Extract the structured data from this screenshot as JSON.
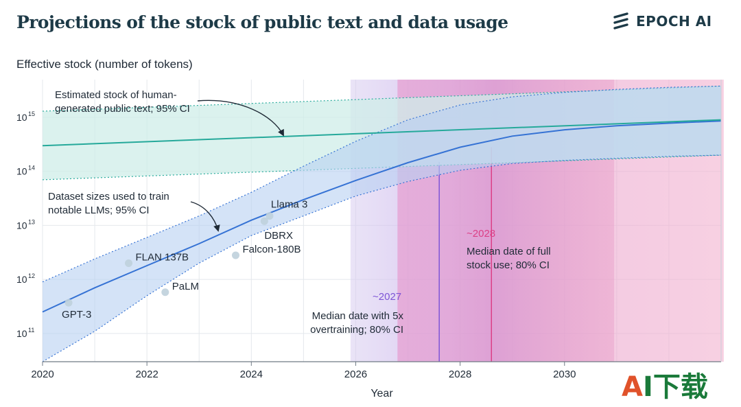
{
  "title": "Projections of the stock of public text and data usage",
  "logo": {
    "text": "EPOCH AI",
    "icon": "epoch-stripes-icon"
  },
  "watermark": {
    "a": "A",
    "rest": "I下载"
  },
  "chart_data": {
    "type": "line",
    "ylabel": "Effective stock (number of tokens)",
    "xlabel": "Year",
    "x_ticks": [
      "2020",
      "2022",
      "2024",
      "2026",
      "2028",
      "2030"
    ],
    "x_range": [
      2020,
      2033
    ],
    "y_scale": "log",
    "y_range": [
      30000000000.0,
      5000000000000000.0
    ],
    "y_ticks": [
      {
        "value": 1000000000000000.0,
        "base": "10",
        "exp": "15"
      },
      {
        "value": 100000000000000.0,
        "base": "10",
        "exp": "14"
      },
      {
        "value": 10000000000000.0,
        "base": "10",
        "exp": "13"
      },
      {
        "value": 1000000000000.0,
        "base": "10",
        "exp": "12"
      },
      {
        "value": 100000000000.0,
        "base": "10",
        "exp": "11"
      }
    ],
    "grid": true,
    "colors": {
      "stock": "#25a99a",
      "stock_band": "#cfeee8",
      "dataset": "#3572d4",
      "dataset_band": "#b7d1f2",
      "overtrain": "#7e55d6",
      "full": "#dc3f86",
      "point": "#bfd0dc",
      "grid": "#e4e8ec"
    },
    "series": [
      {
        "name": "Estimated stock of human-generated public text; 95% CI",
        "x": [
          2020,
          2033
        ],
        "y": [
          300000000000000.0,
          900000000000000.0
        ],
        "lower": [
          70000000000000.0,
          200000000000000.0
        ],
        "upper": [
          1300000000000000.0,
          3800000000000000.0
        ]
      },
      {
        "name": "Dataset sizes used to train notable LLMs; 95% CI",
        "x": [
          2020,
          2021,
          2022,
          2023,
          2024,
          2025,
          2026,
          2027,
          2028,
          2029,
          2030,
          2031,
          2032,
          2033
        ],
        "y": [
          250000000000.0,
          700000000000.0,
          1800000000000.0,
          4600000000000.0,
          12500000000000.0,
          30000000000000.0,
          68000000000000.0,
          145000000000000.0,
          280000000000000.0,
          450000000000000.0,
          590000000000000.0,
          700000000000000.0,
          780000000000000.0,
          860000000000000.0
        ],
        "lower": [
          30000000000.0,
          110000000000.0,
          500000000000.0,
          2000000000000.0,
          6500000000000.0,
          15000000000000.0,
          35000000000000.0,
          65000000000000.0,
          105000000000000.0,
          140000000000000.0,
          160000000000000.0,
          175000000000000.0,
          190000000000000.0,
          200000000000000.0
        ],
        "upper": [
          900000000000.0,
          2400000000000.0,
          6000000000000.0,
          15000000000000.0,
          41000000000000.0,
          125000000000000.0,
          360000000000000.0,
          900000000000000.0,
          1700000000000000.0,
          2400000000000000.0,
          2900000000000000.0,
          3300000000000000.0,
          3600000000000000.0,
          3800000000000000.0
        ]
      }
    ],
    "points": [
      {
        "name": "GPT-3",
        "x": 2020.5,
        "y": 370000000000.0
      },
      {
        "name": "FLAN 137B",
        "x": 2021.65,
        "y": 2000000000000.0
      },
      {
        "name": "PaLM",
        "x": 2022.35,
        "y": 580000000000.0
      },
      {
        "name": "Falcon-180B",
        "x": 2023.7,
        "y": 2800000000000.0
      },
      {
        "name": "DBRX",
        "x": 2024.25,
        "y": 12000000000000.0
      },
      {
        "name": "Llama 3",
        "x": 2024.35,
        "y": 15000000000000.0
      }
    ],
    "regions": [
      {
        "name": "5x-overtraining-ci",
        "from": 2025.9,
        "to": 2030.95,
        "median": 2027.6
      },
      {
        "name": "full-stock-ci",
        "from": 2026.8,
        "to": 2033.05,
        "median": 2028.6
      }
    ],
    "annotations": {
      "stock": [
        "Estimated stock of human-",
        "generated public text; 95% CI"
      ],
      "dataset": [
        "Dataset sizes used to train",
        "notable LLMs; 95% CI"
      ],
      "overtrain_year": "~2027",
      "overtrain_desc": [
        "Median date with 5x",
        "overtraining; 80% CI"
      ],
      "full_year": "~2028",
      "full_desc": [
        "Median date of full",
        "stock use; 80% CI"
      ]
    }
  }
}
